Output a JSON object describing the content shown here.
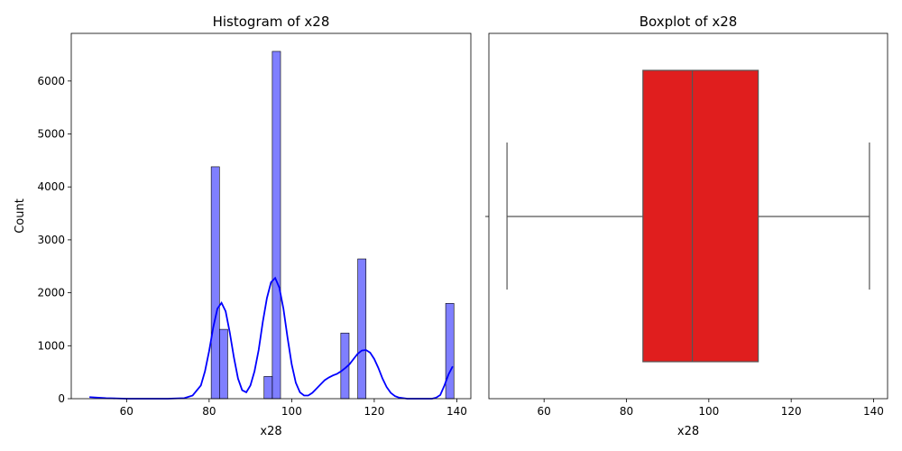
{
  "chart_data": [
    {
      "type": "bar",
      "subtype": "histogram",
      "title": "Histogram of x28",
      "xlabel": "x28",
      "ylabel": "Count",
      "xlim": [
        46.6,
        143.4
      ],
      "ylim": [
        0,
        6900
      ],
      "xticks": [
        60,
        80,
        100,
        120,
        140
      ],
      "yticks": [
        0,
        1000,
        2000,
        3000,
        4000,
        5000,
        6000
      ],
      "grid": false,
      "bar_color": "#0000ff",
      "bar_opacity": 0.5,
      "edge_color": "#000000",
      "kde_color": "#0000ff",
      "bins": [
        {
          "x0": 80.5,
          "x1": 82.5,
          "count": 4380
        },
        {
          "x0": 82.5,
          "x1": 84.5,
          "count": 1310
        },
        {
          "x0": 93.3,
          "x1": 95.3,
          "count": 420
        },
        {
          "x0": 95.3,
          "x1": 97.3,
          "count": 6560
        },
        {
          "x0": 111.9,
          "x1": 113.9,
          "count": 1240
        },
        {
          "x0": 116.0,
          "x1": 118.0,
          "count": 2640
        },
        {
          "x0": 137.3,
          "x1": 139.3,
          "count": 1800
        }
      ],
      "kde": {
        "x": [
          51,
          55,
          60,
          65,
          70,
          74,
          76,
          78,
          79,
          80,
          81,
          82,
          83,
          84,
          85,
          86,
          87,
          88,
          89,
          90,
          91,
          92,
          93,
          94,
          95,
          96,
          97,
          98,
          99,
          100,
          101,
          102,
          103,
          104,
          105,
          106,
          107,
          108,
          109,
          110,
          111,
          112,
          113,
          114,
          115,
          116,
          117,
          118,
          119,
          120,
          121,
          122,
          123,
          124,
          125,
          126,
          127,
          128,
          129,
          130,
          131,
          132,
          133,
          134,
          135,
          136,
          137,
          138,
          139
        ],
        "y": [
          30,
          10,
          0,
          0,
          0,
          10,
          60,
          250,
          520,
          900,
          1350,
          1700,
          1810,
          1650,
          1250,
          780,
          380,
          160,
          120,
          250,
          520,
          920,
          1450,
          1900,
          2200,
          2280,
          2100,
          1700,
          1150,
          650,
          300,
          120,
          60,
          60,
          110,
          190,
          270,
          350,
          400,
          440,
          470,
          520,
          580,
          650,
          750,
          850,
          910,
          920,
          870,
          750,
          580,
          380,
          220,
          110,
          50,
          20,
          10,
          0,
          0,
          0,
          0,
          0,
          0,
          0,
          20,
          70,
          250,
          460,
          610
        ]
      }
    },
    {
      "type": "boxplot",
      "title": "Boxplot of x28",
      "xlabel": "x28",
      "xlim": [
        46.6,
        143.4
      ],
      "xticks": [
        60,
        80,
        100,
        120,
        140
      ],
      "grid": false,
      "box_color": "#e01e1e",
      "line_color": "#555555",
      "whisker_low": 51,
      "q1": 84,
      "median": 96,
      "q3": 112,
      "whisker_high": 139
    }
  ]
}
